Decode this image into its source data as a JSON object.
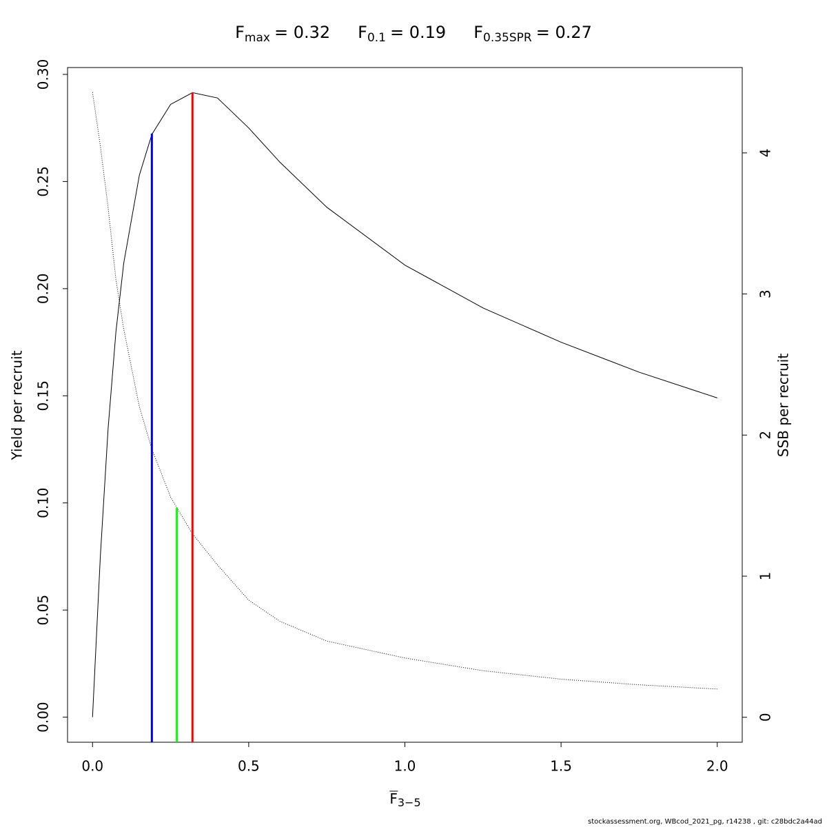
{
  "chart_data": {
    "type": "line",
    "title_parts": [
      {
        "symbol": "F",
        "subscript": "max",
        "text": "= 0.32"
      },
      {
        "symbol": "F",
        "subscript": "0.1",
        "text": "= 0.19"
      },
      {
        "symbol": "F",
        "subscript": "0.35SPR",
        "text": "= 0.27"
      }
    ],
    "xlabel": {
      "symbol": "F",
      "subscript": "3−5"
    },
    "ylabel": "Yield per recruit",
    "y2label": "SSB per recruit",
    "footer": "stockassessment.org, WBcod_2021_pg, r14238 , git: c28bdc2a44ad",
    "x": [
      0,
      0.025,
      0.05,
      0.075,
      0.1,
      0.15,
      0.19,
      0.25,
      0.32,
      0.4,
      0.5,
      0.6,
      0.75,
      1.0,
      1.25,
      1.5,
      1.75,
      2.0
    ],
    "series": [
      {
        "color": "#000000",
        "line_style": "solid",
        "values": [
          0,
          0.075,
          0.135,
          0.18,
          0.212,
          0.253,
          0.272,
          0.286,
          0.2915,
          0.289,
          0.275,
          0.259,
          0.238,
          0.211,
          0.191,
          0.175,
          0.161,
          0.149
        ]
      },
      {
        "color": "#000000",
        "line_style": "dotted",
        "axis": "y2",
        "values": [
          4.43,
          4.05,
          3.61,
          3.1,
          2.75,
          2.2,
          1.9,
          1.56,
          1.3,
          1.08,
          0.83,
          0.68,
          0.54,
          0.42,
          0.33,
          0.27,
          0.23,
          0.2
        ]
      }
    ],
    "reference_lines": [
      {
        "x": 0.19,
        "top": 0.2724,
        "color": "#0000ff"
      },
      {
        "x": 0.27,
        "top": 0.0977,
        "color": "#00ff00"
      },
      {
        "x": 0.32,
        "top": 0.2915,
        "color": "#ff0000"
      }
    ],
    "xlim": [
      -0.08,
      2.08
    ],
    "ylim": [
      -0.0117,
      0.3032
    ],
    "y2lim": [
      -0.177,
      4.605
    ],
    "xticks": [
      {
        "value": 0,
        "label": "0.0"
      },
      {
        "value": 0.5,
        "label": "0.5"
      },
      {
        "value": 1,
        "label": "1.0"
      },
      {
        "value": 1.5,
        "label": "1.5"
      },
      {
        "value": 2,
        "label": "2.0"
      }
    ],
    "yticks": [
      {
        "value": 0,
        "label": "0.00"
      },
      0.05,
      {
        "value": 0.1,
        "label": "0.10"
      },
      0.15,
      {
        "value": 0.2,
        "label": "0.20"
      },
      0.25,
      {
        "value": 0.3,
        "label": "0.30"
      }
    ],
    "y2ticks": [
      0,
      1,
      2,
      3,
      4
    ]
  }
}
